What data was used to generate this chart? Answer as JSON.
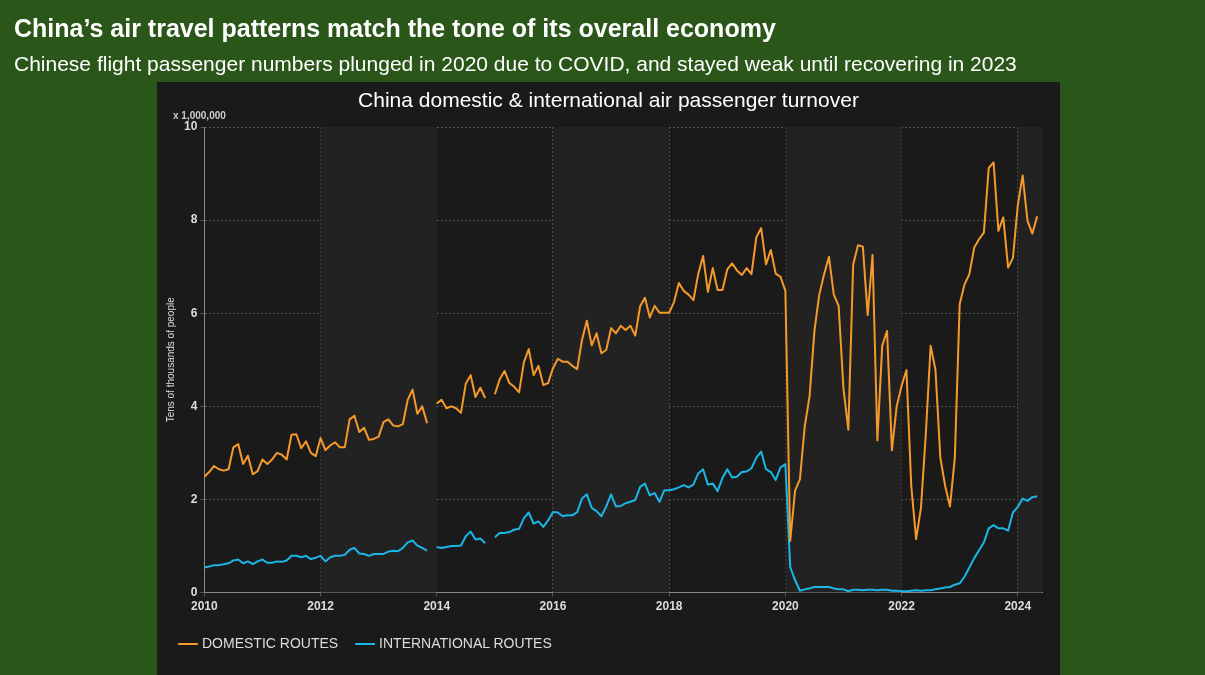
{
  "chart_data": {
    "type": "line",
    "title": "China’s air travel patterns match the tone of its overall economy",
    "subtitle": "Chinese flight passenger numbers plunged in 2020 due to COVID, and stayed weak until recovering in 2023",
    "annotations": [
      "China domestic & international air passenger turnover",
      "x 1,000,000"
    ],
    "ylabel": "Tens of thousands of people",
    "x": [
      "2010-01",
      "2010-02",
      "2010-03",
      "2010-04",
      "2010-05",
      "2010-06",
      "2010-07",
      "2010-08",
      "2010-09",
      "2010-10",
      "2010-11",
      "2010-12",
      "2011-01",
      "2011-02",
      "2011-03",
      "2011-04",
      "2011-05",
      "2011-06",
      "2011-07",
      "2011-08",
      "2011-09",
      "2011-10",
      "2011-11",
      "2011-12",
      "2012-01",
      "2012-02",
      "2012-03",
      "2012-04",
      "2012-05",
      "2012-06",
      "2012-07",
      "2012-08",
      "2012-09",
      "2012-10",
      "2012-11",
      "2012-12",
      "2013-01",
      "2013-02",
      "2013-03",
      "2013-04",
      "2013-05",
      "2013-06",
      "2013-07",
      "2013-08",
      "2013-09",
      "2013-10",
      "2013-11",
      "2013-12",
      "2014-01",
      "2014-02",
      "2014-03",
      "2014-04",
      "2014-05",
      "2014-06",
      "2014-07",
      "2014-08",
      "2014-09",
      "2014-10",
      "2014-11",
      "2014-12",
      "2015-01",
      "2015-02",
      "2015-03",
      "2015-04",
      "2015-05",
      "2015-06",
      "2015-07",
      "2015-08",
      "2015-09",
      "2015-10",
      "2015-11",
      "2015-12",
      "2016-01",
      "2016-02",
      "2016-03",
      "2016-04",
      "2016-05",
      "2016-06",
      "2016-07",
      "2016-08",
      "2016-09",
      "2016-10",
      "2016-11",
      "2016-12",
      "2017-01",
      "2017-02",
      "2017-03",
      "2017-04",
      "2017-05",
      "2017-06",
      "2017-07",
      "2017-08",
      "2017-09",
      "2017-10",
      "2017-11",
      "2017-12",
      "2018-01",
      "2018-02",
      "2018-03",
      "2018-04",
      "2018-05",
      "2018-06",
      "2018-07",
      "2018-08",
      "2018-09",
      "2018-10",
      "2018-11",
      "2018-12",
      "2019-01",
      "2019-02",
      "2019-03",
      "2019-04",
      "2019-05",
      "2019-06",
      "2019-07",
      "2019-08",
      "2019-09",
      "2019-10",
      "2019-11",
      "2019-12",
      "2020-01",
      "2020-02",
      "2020-03",
      "2020-04",
      "2020-05",
      "2020-06",
      "2020-07",
      "2020-08",
      "2020-09",
      "2020-10",
      "2020-11",
      "2020-12",
      "2021-01",
      "2021-02",
      "2021-03",
      "2021-04",
      "2021-05",
      "2021-06",
      "2021-07",
      "2021-08",
      "2021-09",
      "2021-10",
      "2021-11",
      "2021-12",
      "2022-01",
      "2022-02",
      "2022-03",
      "2022-04",
      "2022-05",
      "2022-06",
      "2022-07",
      "2022-08",
      "2022-09",
      "2022-10",
      "2022-11",
      "2022-12",
      "2023-01",
      "2023-02",
      "2023-03",
      "2023-04",
      "2023-05",
      "2023-06",
      "2023-07",
      "2023-08",
      "2023-09",
      "2023-10",
      "2023-11",
      "2023-12",
      "2024-01",
      "2024-02",
      "2024-03",
      "2024-04",
      "2024-05"
    ],
    "series": [
      {
        "name": "DOMESTIC ROUTES",
        "color": "#f59a2a",
        "values": [
          2.49,
          2.59,
          2.72,
          2.65,
          2.62,
          2.65,
          3.12,
          3.19,
          2.76,
          2.94,
          2.54,
          2.61,
          2.86,
          2.76,
          2.86,
          3.0,
          2.96,
          2.86,
          3.39,
          3.4,
          3.1,
          3.25,
          3.0,
          2.93,
          3.32,
          3.06,
          3.16,
          3.23,
          3.12,
          3.12,
          3.72,
          3.8,
          3.45,
          3.54,
          3.28,
          3.3,
          3.35,
          3.66,
          3.72,
          3.59,
          3.57,
          3.62,
          4.14,
          4.36,
          3.84,
          4.0,
          3.64,
          null,
          4.06,
          4.14,
          3.96,
          4.0,
          3.96,
          3.86,
          4.49,
          4.67,
          4.2,
          4.4,
          4.18,
          null,
          4.26,
          4.58,
          4.76,
          4.5,
          4.42,
          4.3,
          4.95,
          5.23,
          4.67,
          4.87,
          4.46,
          4.5,
          4.82,
          5.02,
          4.96,
          4.96,
          4.87,
          4.8,
          5.43,
          5.84,
          5.31,
          5.57,
          5.14,
          5.21,
          5.68,
          5.57,
          5.73,
          5.64,
          5.73,
          5.52,
          6.15,
          6.33,
          5.91,
          6.16,
          6.01,
          6.01,
          6.01,
          6.24,
          6.65,
          6.48,
          6.4,
          6.28,
          6.84,
          7.23,
          6.46,
          6.97,
          6.5,
          6.5,
          6.94,
          7.07,
          6.92,
          6.82,
          6.97,
          6.84,
          7.63,
          7.83,
          7.05,
          7.36,
          6.85,
          6.78,
          6.48,
          1.11,
          2.19,
          2.43,
          3.57,
          4.22,
          5.62,
          6.4,
          6.84,
          7.21,
          6.4,
          6.16,
          4.38,
          3.5,
          7.04,
          7.46,
          7.43,
          5.96,
          7.25,
          3.27,
          5.3,
          5.62,
          3.06,
          4.01,
          4.44,
          4.78,
          2.29,
          1.15,
          1.82,
          3.4,
          5.3,
          4.78,
          2.9,
          2.29,
          1.85,
          2.9,
          6.2,
          6.62,
          6.84,
          7.41,
          7.59,
          7.73,
          9.12,
          9.24,
          7.77,
          8.06,
          6.98,
          7.19,
          8.32,
          8.96,
          7.99,
          7.71,
          8.08
        ]
      },
      {
        "name": "INTERNATIONAL ROUTES",
        "color": "#1ab6e6",
        "values": [
          0.54,
          0.56,
          0.59,
          0.59,
          0.61,
          0.63,
          0.69,
          0.71,
          0.63,
          0.67,
          0.61,
          0.67,
          0.71,
          0.64,
          0.64,
          0.67,
          0.66,
          0.69,
          0.79,
          0.79,
          0.76,
          0.79,
          0.72,
          0.75,
          0.79,
          0.67,
          0.76,
          0.79,
          0.79,
          0.81,
          0.92,
          0.96,
          0.84,
          0.83,
          0.79,
          0.83,
          0.83,
          0.83,
          0.88,
          0.9,
          0.89,
          0.96,
          1.08,
          1.12,
          1.01,
          0.96,
          0.9,
          null,
          0.98,
          0.96,
          0.98,
          1.0,
          1.0,
          1.01,
          1.21,
          1.31,
          1.14,
          1.16,
          1.06,
          null,
          1.19,
          1.28,
          1.28,
          1.3,
          1.35,
          1.37,
          1.6,
          1.72,
          1.48,
          1.53,
          1.41,
          1.55,
          1.73,
          1.72,
          1.64,
          1.66,
          1.66,
          1.73,
          2.02,
          2.11,
          1.82,
          1.75,
          1.64,
          1.85,
          2.11,
          1.85,
          1.86,
          1.92,
          1.95,
          1.99,
          2.27,
          2.34,
          2.09,
          2.14,
          1.95,
          2.2,
          2.2,
          2.22,
          2.26,
          2.31,
          2.26,
          2.32,
          2.56,
          2.65,
          2.32,
          2.34,
          2.18,
          2.46,
          2.65,
          2.47,
          2.49,
          2.59,
          2.6,
          2.67,
          2.9,
          3.03,
          2.65,
          2.59,
          2.42,
          2.69,
          2.76,
          0.55,
          0.27,
          0.04,
          0.07,
          0.09,
          0.12,
          0.12,
          0.12,
          0.12,
          0.09,
          0.07,
          0.07,
          0.03,
          0.06,
          0.06,
          0.05,
          0.06,
          0.06,
          0.05,
          0.06,
          0.06,
          0.04,
          0.04,
          0.03,
          0.03,
          0.04,
          0.05,
          0.04,
          0.05,
          0.05,
          0.07,
          0.09,
          0.11,
          0.12,
          0.17,
          0.2,
          0.34,
          0.54,
          0.74,
          0.91,
          1.08,
          1.38,
          1.45,
          1.38,
          1.38,
          1.33,
          1.72,
          1.84,
          2.02,
          1.97,
          2.05,
          2.07
        ]
      }
    ],
    "xlim": [
      "2010-01",
      "2024-06"
    ],
    "xticks": [
      "2010",
      "2012",
      "2014",
      "2016",
      "2018",
      "2020",
      "2022",
      "2024"
    ],
    "ylim": [
      0,
      10
    ],
    "yticks": [
      0,
      2,
      4,
      6,
      8,
      10
    ],
    "bands": [
      {
        "axis": "x",
        "from": "2012",
        "to": "2014",
        "color": "#222222"
      },
      {
        "axis": "x",
        "from": "2016",
        "to": "2018",
        "color": "#222222"
      },
      {
        "axis": "x",
        "from": "2020",
        "to": "2022",
        "color": "#222222"
      },
      {
        "axis": "x",
        "from": "2024",
        "to": "2024-06",
        "color": "#222222"
      }
    ],
    "grid": true,
    "legend": "bottom",
    "marker": "none",
    "line_style": "solid"
  }
}
